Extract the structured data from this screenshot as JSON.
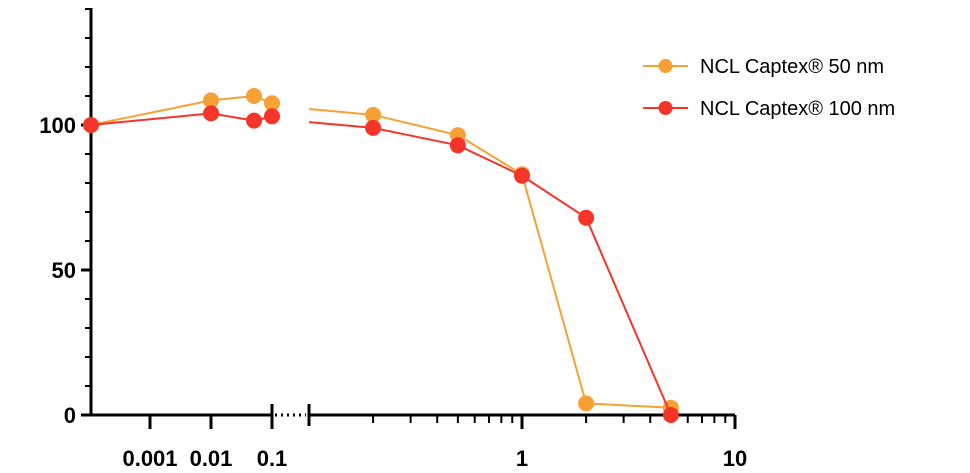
{
  "chart_data": {
    "type": "line",
    "title": "",
    "xlabel": "",
    "ylabel": "",
    "x_scale": "log (segmented, axis break)",
    "ylim": [
      0,
      140
    ],
    "y_ticks": [
      0,
      50,
      100
    ],
    "y_tick_labels": [
      "0",
      "50",
      "100"
    ],
    "x_tick_labels": [
      "0.001",
      "0.01",
      "0.1",
      "1",
      "10"
    ],
    "legend_position": "top-right",
    "grid": false,
    "series": [
      {
        "name": "NCL Captex® 50 nm",
        "color": "#F7A134",
        "x": [
          0.0003,
          0.01,
          0.05,
          0.1,
          0.2,
          0.5,
          1,
          2,
          5
        ],
        "y": [
          100,
          108.5,
          110,
          107.5,
          103.5,
          96.5,
          83,
          4,
          2.5
        ]
      },
      {
        "name": "NCL Captex® 100 nm",
        "color": "#F5342A",
        "x": [
          0.0003,
          0.01,
          0.05,
          0.1,
          0.2,
          0.5,
          1,
          2,
          5
        ],
        "y": [
          100,
          104,
          101.5,
          103,
          99,
          93,
          82.5,
          68,
          0
        ]
      }
    ]
  }
}
